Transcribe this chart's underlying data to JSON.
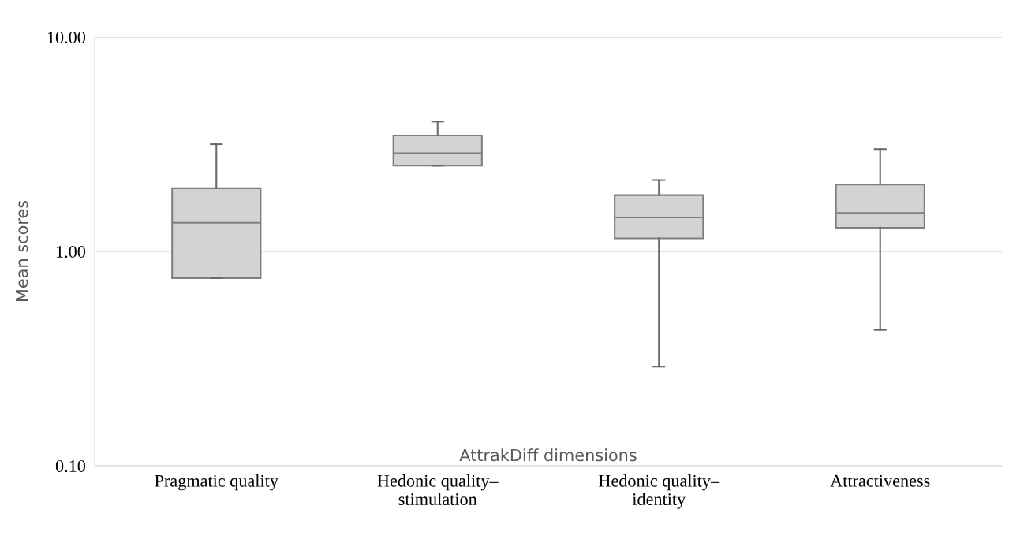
{
  "chart_data": {
    "type": "box",
    "xlabel": "AttrakDiff dimensions",
    "ylabel": "Mean scores",
    "categories": [
      "Pragmatic quality",
      "Hedonic quality–\nstimulation",
      "Hedonic quality–\nidentity",
      "Attractiveness"
    ],
    "boxes": [
      {
        "low": 0.75,
        "q1": 0.75,
        "median": 1.36,
        "q3": 1.97,
        "high": 3.16
      },
      {
        "low": 2.51,
        "q1": 2.51,
        "median": 2.87,
        "q3": 3.47,
        "high": 4.03
      },
      {
        "low": 0.29,
        "q1": 1.15,
        "median": 1.44,
        "q3": 1.83,
        "high": 2.15
      },
      {
        "low": 0.43,
        "q1": 1.29,
        "median": 1.51,
        "q3": 2.05,
        "high": 3.0
      }
    ],
    "color": "#d3d3d3",
    "log": true,
    "ylim": [
      0.1,
      10
    ],
    "yticks": [
      {
        "value": 0.1,
        "label": "0.10"
      },
      {
        "value": 1,
        "label": "1.00"
      },
      {
        "value": 10,
        "label": "10.00"
      }
    ],
    "grid": "y"
  }
}
